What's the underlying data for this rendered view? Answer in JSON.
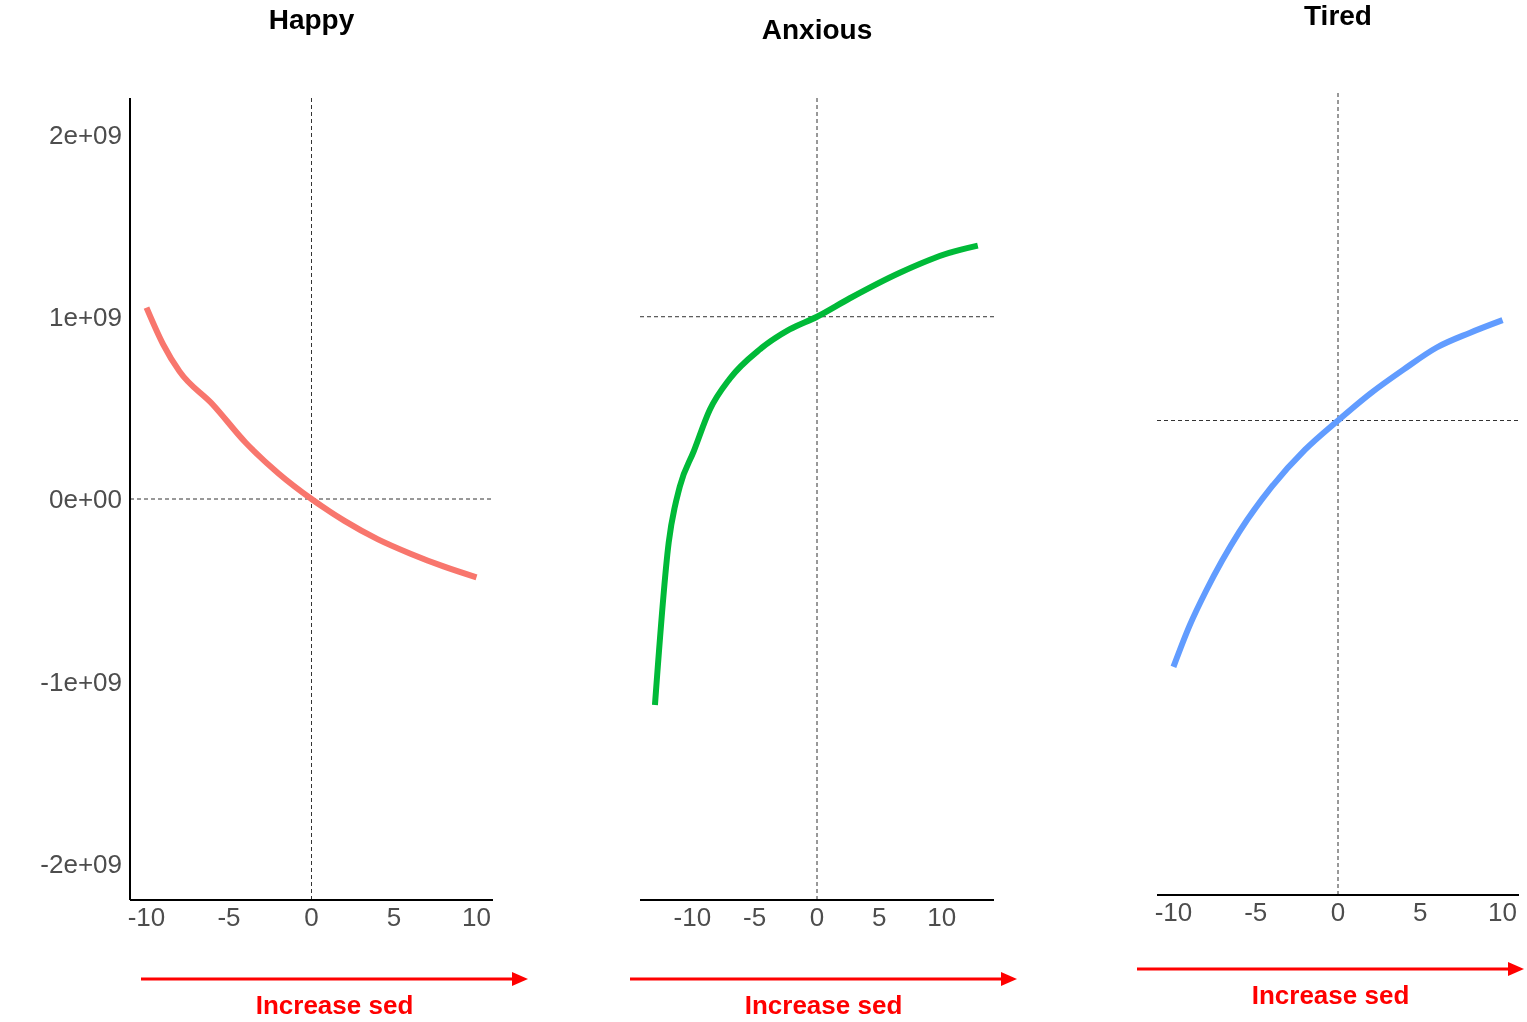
{
  "chart_data": [
    {
      "type": "line",
      "title": "Happy",
      "x": [
        -10,
        -9,
        -8,
        -6,
        -4,
        -2,
        0,
        2,
        4,
        6,
        8,
        10
      ],
      "series": [
        {
          "color": "#f8766d",
          "values": [
            1050000000.0,
            850000000.0,
            700000000.0,
            520000000.0,
            310000000.0,
            140000000.0,
            0,
            -120000000.0,
            -220000000.0,
            -300000000.0,
            -370000000.0,
            -430000000.0
          ]
        }
      ],
      "xlim": [
        -11,
        11
      ],
      "xticks": [
        -10,
        -5,
        0,
        5,
        10
      ],
      "ylim": [
        -2200000000.0,
        2200000000.0
      ],
      "yticks": [
        {
          "value": -2000000000,
          "label": "-2e+09"
        },
        {
          "value": -1000000000,
          "label": "-1e+09"
        },
        {
          "value": 0,
          "label": "0e+00"
        },
        {
          "value": 1000000000,
          "label": "1e+09"
        },
        {
          "value": 2000000000,
          "label": "2e+09"
        }
      ],
      "ref_lines": [
        {
          "axis": "x",
          "value": 0,
          "line_style": "dashed"
        },
        {
          "axis": "y",
          "value": 0,
          "line_style": "dashed"
        }
      ],
      "annotations": [
        "Increase sed"
      ]
    },
    {
      "type": "line",
      "title": "Anxious",
      "x": [
        -13,
        -11.9,
        -11,
        -9.9,
        -8.6,
        -7,
        -4.6,
        -2.2,
        0,
        2.6,
        6.6,
        10.6,
        12.9
      ],
      "series": [
        {
          "color": "#00ba38",
          "values": [
            -1130000000.0,
            -240000000.0,
            70000000.0,
            260000000.0,
            490000000.0,
            660000000.0,
            820000000.0,
            930000000.0,
            1000000000.0,
            1100000000.0,
            1240000000.0,
            1350000000.0,
            1390000000.0
          ]
        }
      ],
      "xlim": [
        -14.2,
        14.2
      ],
      "xticks": [
        -10,
        -5,
        0,
        5,
        10
      ],
      "ylim": [
        -2200000000.0,
        2200000000.0
      ],
      "tick_labels": "x",
      "ref_lines": [
        {
          "axis": "x",
          "value": 0,
          "line_style": "dashed"
        },
        {
          "axis": "y",
          "value": 1000000000,
          "line_style": "dashed"
        }
      ],
      "annotations": [
        "Increase sed"
      ]
    },
    {
      "type": "line",
      "title": "Tired",
      "x": [
        -10,
        -9,
        -8,
        -6,
        -4,
        -2,
        0,
        2,
        4,
        6,
        8,
        10
      ],
      "series": [
        {
          "color": "#619cff",
          "values": [
            -950000000.0,
            -720000000.0,
            -530000000.0,
            -210000000.0,
            40000000.0,
            240000000.0,
            400000000.0,
            550000000.0,
            680000000.0,
            800000000.0,
            880000000.0,
            950000000.0
          ]
        }
      ],
      "xlim": [
        -11,
        11
      ],
      "xticks": [
        -10,
        -5,
        0,
        5,
        10
      ],
      "ylim": [
        -2200000000.0,
        2200000000.0
      ],
      "tick_labels": "x",
      "ref_lines": [
        {
          "axis": "x",
          "value": 0,
          "line_style": "dashed"
        },
        {
          "axis": "y",
          "value": 400000000,
          "line_style": "dashed"
        }
      ],
      "annotations": [
        "Increase sed"
      ]
    }
  ]
}
